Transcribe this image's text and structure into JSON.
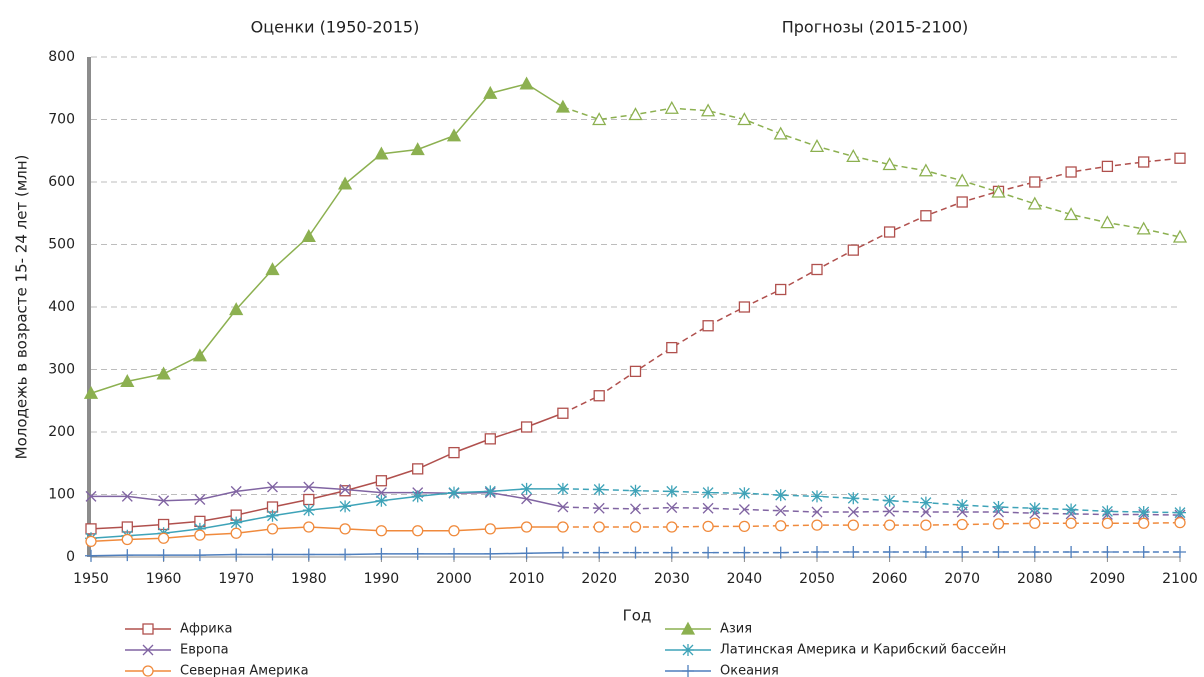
{
  "chart_data": {
    "type": "line",
    "annotations": [
      "Оценки  (1950-2015)",
      "Прогнозы (2015-2100)"
    ],
    "xlabel": "Год",
    "ylabel": "Молодежь в возрасте 15- 24 лет (млн)",
    "projection_from": 2015,
    "x": [
      1950,
      1955,
      1960,
      1965,
      1970,
      1975,
      1980,
      1985,
      1990,
      1995,
      2000,
      2005,
      2010,
      2015,
      2020,
      2025,
      2030,
      2035,
      2040,
      2045,
      2050,
      2055,
      2060,
      2065,
      2070,
      2075,
      2080,
      2085,
      2090,
      2095,
      2100
    ],
    "xlim": [
      1950,
      2100
    ],
    "xticks": [
      1950,
      1960,
      1970,
      1980,
      1990,
      2000,
      2010,
      2020,
      2030,
      2040,
      2050,
      2060,
      2070,
      2080,
      2090,
      2100
    ],
    "ylim": [
      0,
      800
    ],
    "yticks": [
      0,
      100,
      200,
      300,
      400,
      500,
      600,
      700,
      800
    ],
    "grid": true,
    "series": [
      {
        "name": "Африка",
        "color": "#b0504d",
        "marker": "square",
        "values": [
          45,
          48,
          52,
          57,
          67,
          80,
          92,
          106,
          122,
          141,
          167,
          189,
          208,
          230,
          258,
          297,
          335,
          370,
          400,
          428,
          460,
          491,
          520,
          546,
          568,
          585,
          600,
          616,
          625,
          632,
          638
        ]
      },
      {
        "name": "Азия",
        "color": "#8cb050",
        "marker": "triangle",
        "values": [
          262,
          281,
          293,
          322,
          396,
          460,
          513,
          597,
          645,
          652,
          674,
          742,
          757,
          720,
          700,
          708,
          718,
          714,
          700,
          677,
          657,
          641,
          628,
          618,
          602,
          584,
          565,
          548,
          535,
          525,
          512
        ]
      },
      {
        "name": "Европа",
        "color": "#8064a2",
        "marker": "x",
        "values": [
          97,
          97,
          90,
          92,
          105,
          112,
          112,
          108,
          103,
          103,
          102,
          103,
          93,
          80,
          78,
          77,
          79,
          78,
          76,
          74,
          72,
          72,
          73,
          72,
          72,
          72,
          70,
          69,
          68,
          68,
          67
        ]
      },
      {
        "name": "Латинская Америка и Карибский бассейн",
        "color": "#3ea3b8",
        "marker": "star",
        "values": [
          30,
          34,
          38,
          45,
          55,
          66,
          75,
          81,
          90,
          97,
          103,
          105,
          109,
          109,
          108,
          106,
          105,
          103,
          102,
          99,
          97,
          94,
          90,
          87,
          83,
          80,
          78,
          76,
          73,
          72,
          71
        ]
      },
      {
        "name": "Северная Америка",
        "color": "#f08a3c",
        "marker": "circle",
        "values": [
          25,
          28,
          30,
          35,
          38,
          45,
          48,
          45,
          42,
          42,
          42,
          45,
          48,
          48,
          48,
          48,
          48,
          49,
          49,
          50,
          51,
          51,
          51,
          51,
          52,
          53,
          54,
          54,
          54,
          54,
          55
        ]
      },
      {
        "name": "Океания",
        "color": "#4f7fbd",
        "marker": "plus",
        "values": [
          2,
          3,
          3,
          3,
          4,
          4,
          4,
          4,
          5,
          5,
          5,
          5,
          6,
          7,
          7,
          7,
          7,
          7,
          7,
          7,
          8,
          8,
          8,
          8,
          8,
          8,
          8,
          8,
          8,
          8,
          8
        ]
      }
    ]
  }
}
